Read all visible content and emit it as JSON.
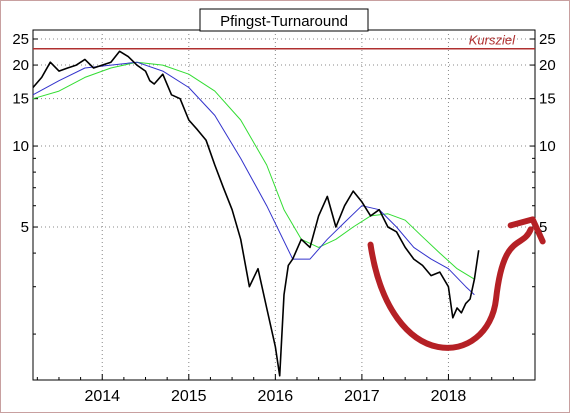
{
  "chart_data": {
    "type": "line",
    "title": "Pfingst-Turnaround",
    "xlabel": "",
    "ylabel": "",
    "y_scale": "log",
    "ylim": [
      1.35,
      27
    ],
    "xlim": [
      2013.2,
      2019.0
    ],
    "grid": true,
    "y_ticks": [
      5,
      10,
      15,
      20,
      25
    ],
    "y_tick_labels": [
      "5",
      "10",
      "15",
      "20",
      "25"
    ],
    "x_ticks": [
      2014,
      2015,
      2016,
      2017,
      2018
    ],
    "x_tick_labels": [
      "2014",
      "2015",
      "2016",
      "2017",
      "2018"
    ],
    "colors": {
      "background": "#ffffff",
      "border": "#c8a0a0",
      "grid": "#888888",
      "price": "#000000",
      "ma_short": "#3333cc",
      "ma_long": "#33dd33",
      "target": "#b03030",
      "arrow": "#b52025"
    },
    "series": [
      {
        "key": "price",
        "x": [
          2013.2,
          2013.3,
          2013.4,
          2013.5,
          2013.6,
          2013.7,
          2013.8,
          2013.9,
          2014.0,
          2014.1,
          2014.2,
          2014.3,
          2014.4,
          2014.5,
          2014.55,
          2014.6,
          2014.7,
          2014.8,
          2014.9,
          2015.0,
          2015.1,
          2015.2,
          2015.3,
          2015.4,
          2015.5,
          2015.6,
          2015.7,
          2015.8,
          2015.9,
          2016.0,
          2016.05,
          2016.1,
          2016.15,
          2016.2,
          2016.3,
          2016.4,
          2016.5,
          2016.6,
          2016.7,
          2016.8,
          2016.9,
          2017.0,
          2017.1,
          2017.2,
          2017.3,
          2017.4,
          2017.5,
          2017.6,
          2017.7,
          2017.8,
          2017.9,
          2018.0,
          2018.05,
          2018.1,
          2018.15,
          2018.2,
          2018.25,
          2018.3,
          2018.35
        ],
        "values": [
          16.5,
          18.0,
          20.5,
          19.0,
          19.5,
          20.0,
          21.0,
          19.5,
          20.0,
          20.5,
          22.5,
          21.5,
          20.0,
          19.0,
          17.5,
          17.0,
          18.5,
          15.5,
          15.0,
          12.5,
          11.5,
          10.5,
          8.5,
          7.0,
          5.8,
          4.5,
          3.0,
          3.5,
          2.5,
          1.8,
          1.4,
          2.8,
          3.6,
          3.8,
          4.5,
          4.2,
          5.5,
          6.5,
          5.0,
          6.0,
          6.8,
          6.2,
          5.5,
          5.8,
          5.0,
          4.8,
          4.2,
          3.8,
          3.6,
          3.3,
          3.4,
          3.0,
          2.3,
          2.5,
          2.4,
          2.6,
          2.7,
          3.2,
          4.1
        ]
      },
      {
        "key": "ma_short",
        "x": [
          2013.2,
          2013.5,
          2013.8,
          2014.1,
          2014.4,
          2014.7,
          2015.0,
          2015.3,
          2015.6,
          2015.9,
          2016.2,
          2016.4,
          2016.6,
          2016.8,
          2017.0,
          2017.2,
          2017.4,
          2017.6,
          2017.8,
          2018.0,
          2018.2,
          2018.3
        ],
        "values": [
          15.5,
          17.5,
          19.5,
          20.0,
          20.5,
          19.0,
          16.5,
          13.0,
          9.0,
          6.0,
          3.8,
          3.8,
          4.5,
          5.2,
          6.0,
          5.8,
          5.0,
          4.2,
          3.8,
          3.5,
          3.0,
          2.8
        ]
      },
      {
        "key": "ma_long",
        "x": [
          2013.2,
          2013.5,
          2013.8,
          2014.1,
          2014.4,
          2014.7,
          2015.0,
          2015.3,
          2015.6,
          2015.9,
          2016.1,
          2016.3,
          2016.5,
          2016.7,
          2016.9,
          2017.1,
          2017.3,
          2017.5,
          2017.7,
          2017.9,
          2018.1,
          2018.3
        ],
        "values": [
          15.0,
          16.0,
          18.0,
          19.5,
          20.5,
          20.0,
          18.5,
          16.0,
          12.5,
          8.5,
          5.8,
          4.5,
          4.2,
          4.5,
          5.0,
          5.5,
          5.6,
          5.3,
          4.6,
          4.0,
          3.5,
          3.2
        ]
      }
    ],
    "target_line": {
      "value": 23,
      "label": "Kursziel"
    },
    "annotations": [
      {
        "type": "curved-arrow",
        "description": "red U-shaped turnaround arrow from 2017.1 down to 2018 low and up to 2018.9"
      }
    ]
  }
}
